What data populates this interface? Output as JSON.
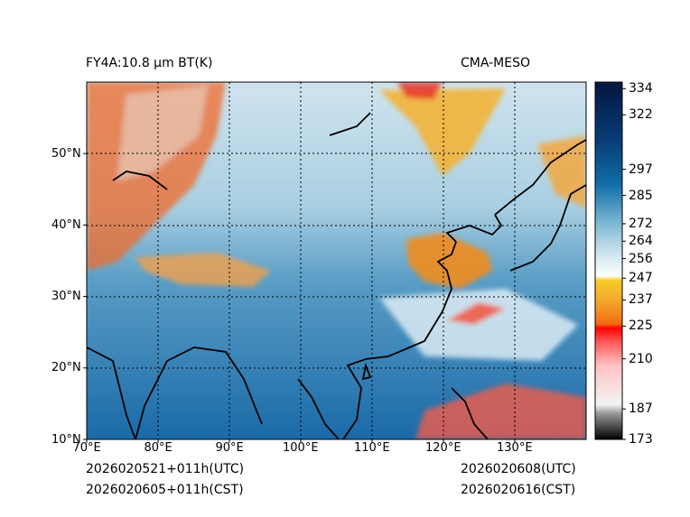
{
  "title_left": "FY4A:10.8 µm BT(K)",
  "title_right": "CMA-MESO",
  "footer": {
    "init_utc": "2026020521+011h(UTC)",
    "init_cst": "2026020605+011h(CST)",
    "valid_utc": "2026020608(UTC)",
    "valid_cst": "2026020616(CST)"
  },
  "map": {
    "lon_range": [
      70,
      140
    ],
    "lat_range": [
      10,
      60
    ],
    "lon_ticks": [
      {
        "value": 70,
        "label": "70°E"
      },
      {
        "value": 80,
        "label": "80°E"
      },
      {
        "value": 90,
        "label": "90°E"
      },
      {
        "value": 100,
        "label": "100°E"
      },
      {
        "value": 110,
        "label": "110°E"
      },
      {
        "value": 120,
        "label": "120°E"
      },
      {
        "value": 130,
        "label": "130°E"
      }
    ],
    "lat_ticks": [
      {
        "value": 10,
        "label": "10°N"
      },
      {
        "value": 20,
        "label": "20°N"
      },
      {
        "value": 30,
        "label": "30°N"
      },
      {
        "value": 40,
        "label": "40°N"
      },
      {
        "value": 50,
        "label": "50°N"
      }
    ]
  },
  "colorbar": {
    "range": [
      173,
      337
    ],
    "ticks": [
      {
        "value": 334,
        "label": "334"
      },
      {
        "value": 322,
        "label": "322"
      },
      {
        "value": 297,
        "label": "297"
      },
      {
        "value": 285,
        "label": "285"
      },
      {
        "value": 272,
        "label": "272"
      },
      {
        "value": 264,
        "label": "264"
      },
      {
        "value": 256,
        "label": "256"
      },
      {
        "value": 247,
        "label": "247"
      },
      {
        "value": 237,
        "label": "237"
      },
      {
        "value": 225,
        "label": "225"
      },
      {
        "value": 210,
        "label": "210"
      },
      {
        "value": 187,
        "label": "187"
      },
      {
        "value": 173,
        "label": "173"
      }
    ],
    "stops": [
      {
        "value": 173,
        "color": "#000000"
      },
      {
        "value": 185,
        "color": "#9a9a9a"
      },
      {
        "value": 189,
        "color": "#f4f4f4"
      },
      {
        "value": 207,
        "color": "#ffc2c2"
      },
      {
        "value": 218,
        "color": "#ff5555"
      },
      {
        "value": 224,
        "color": "#ff0000"
      },
      {
        "value": 226,
        "color": "#f36a10"
      },
      {
        "value": 236,
        "color": "#f4a62a"
      },
      {
        "value": 246,
        "color": "#f8cc28"
      },
      {
        "value": 248,
        "color": "#ffffff"
      },
      {
        "value": 258,
        "color": "#cfe6f0"
      },
      {
        "value": 272,
        "color": "#7eb8d4"
      },
      {
        "value": 290,
        "color": "#0f6ea8"
      },
      {
        "value": 310,
        "color": "#0a3d78"
      },
      {
        "value": 337,
        "color": "#041640"
      }
    ]
  }
}
